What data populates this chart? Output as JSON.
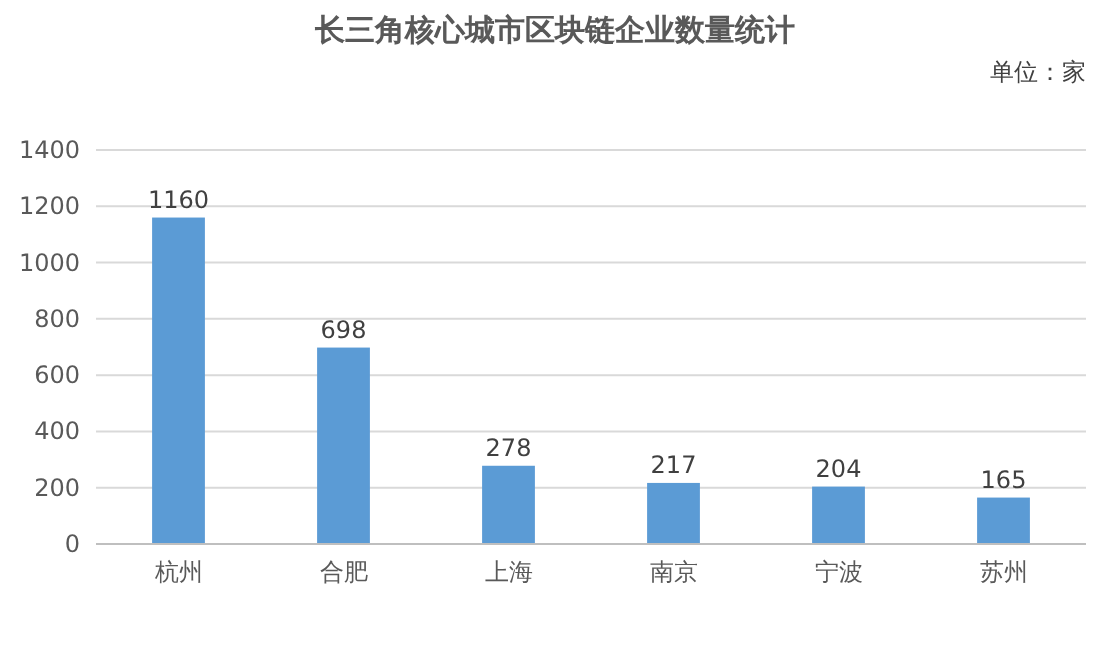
{
  "chart_data": {
    "type": "bar",
    "title": "长三角核心城市区块链企业数量统计",
    "annotations": [
      "单位：家"
    ],
    "categories": [
      "杭州",
      "合肥",
      "上海",
      "南京",
      "宁波",
      "苏州"
    ],
    "values": [
      1160,
      698,
      278,
      217,
      204,
      165
    ],
    "color": "#5b9bd5",
    "ylim": [
      0,
      1400
    ],
    "yticks": [
      0,
      200,
      400,
      600,
      800,
      1000,
      1200,
      1400
    ],
    "grid": "y",
    "data_labels": true
  }
}
